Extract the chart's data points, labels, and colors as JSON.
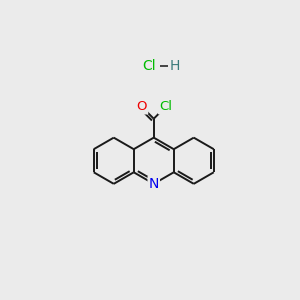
{
  "bg_color": "#ebebeb",
  "bond_color": "#1a1a1a",
  "N_color": "#0000ee",
  "O_color": "#ee0000",
  "Cl_color": "#00bb00",
  "H_color": "#3a7a7a",
  "bond_lw": 1.4,
  "figsize": [
    3.0,
    3.0
  ],
  "dpi": 100,
  "xlim": [
    0,
    10
  ],
  "ylim": [
    0,
    10
  ]
}
